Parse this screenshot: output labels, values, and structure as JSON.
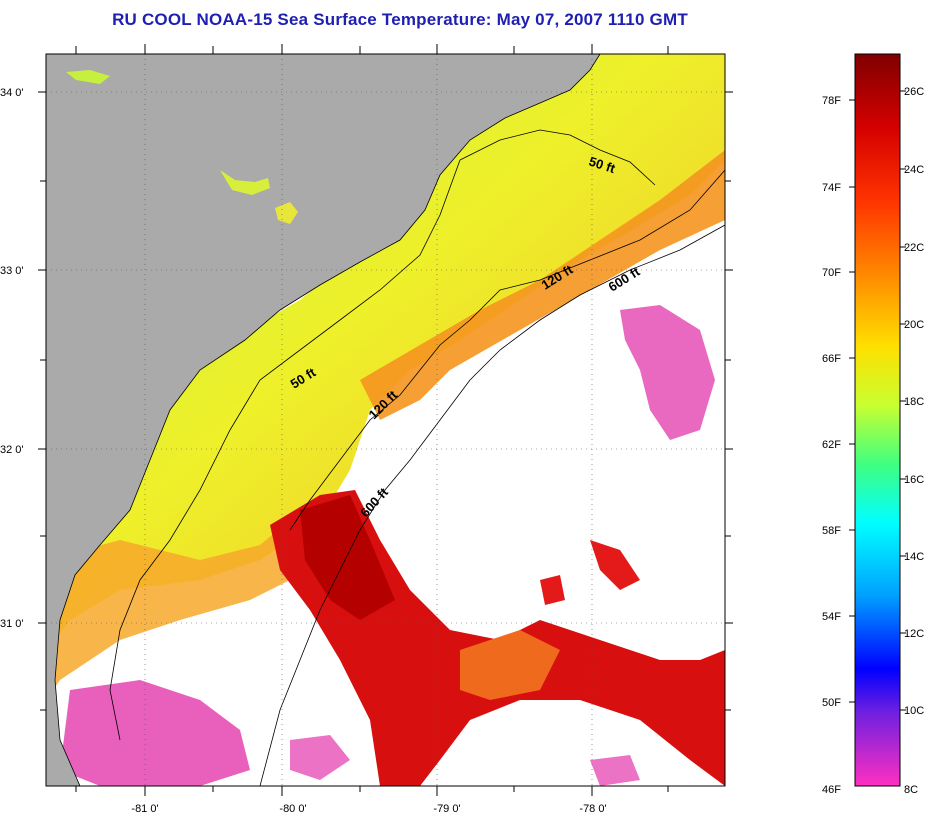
{
  "title": "RU COOL  NOAA-15  Sea Surface Temperature:  May 07, 2007 1110 GMT",
  "map": {
    "lat_labels": [
      "34 0'",
      "33 0'",
      "32 0'",
      "31 0'"
    ],
    "lon_labels": [
      "-81 0'",
      "-80 0'",
      "-79 0'",
      "-78 0'"
    ],
    "contour_labels": [
      "50 ft",
      "120 ft",
      "600 ft",
      "50 ft",
      "120 ft",
      "600 ft"
    ],
    "colors": {
      "land": "#aaaaaa",
      "cloud": "#ffffff",
      "warm_dark": "#c00000",
      "warm": "#e41a1a",
      "orange": "#f07a1e",
      "amber": "#f4b42a",
      "yellow": "#eef02a",
      "yellow_green": "#c6ef3e",
      "pink": "#e64fb5"
    }
  },
  "colorbar": {
    "fahrenheit_labels": [
      "78F",
      "74F",
      "70F",
      "66F",
      "62F",
      "58F",
      "54F",
      "50F",
      "46F"
    ],
    "celsius_labels": [
      "26C",
      "24C",
      "22C",
      "20C",
      "18C",
      "16C",
      "14C",
      "12C",
      "10C",
      "8C"
    ],
    "gradient_stops": [
      {
        "offset": 0.0,
        "color": "#800000"
      },
      {
        "offset": 0.1,
        "color": "#d40000"
      },
      {
        "offset": 0.2,
        "color": "#ff3300"
      },
      {
        "offset": 0.3,
        "color": "#ff8800"
      },
      {
        "offset": 0.4,
        "color": "#ffe000"
      },
      {
        "offset": 0.48,
        "color": "#c8ff30"
      },
      {
        "offset": 0.56,
        "color": "#40ff80"
      },
      {
        "offset": 0.64,
        "color": "#00ffff"
      },
      {
        "offset": 0.74,
        "color": "#00a0ff"
      },
      {
        "offset": 0.84,
        "color": "#0000ff"
      },
      {
        "offset": 0.9,
        "color": "#7020e0"
      },
      {
        "offset": 1.0,
        "color": "#ff30c0"
      }
    ]
  }
}
